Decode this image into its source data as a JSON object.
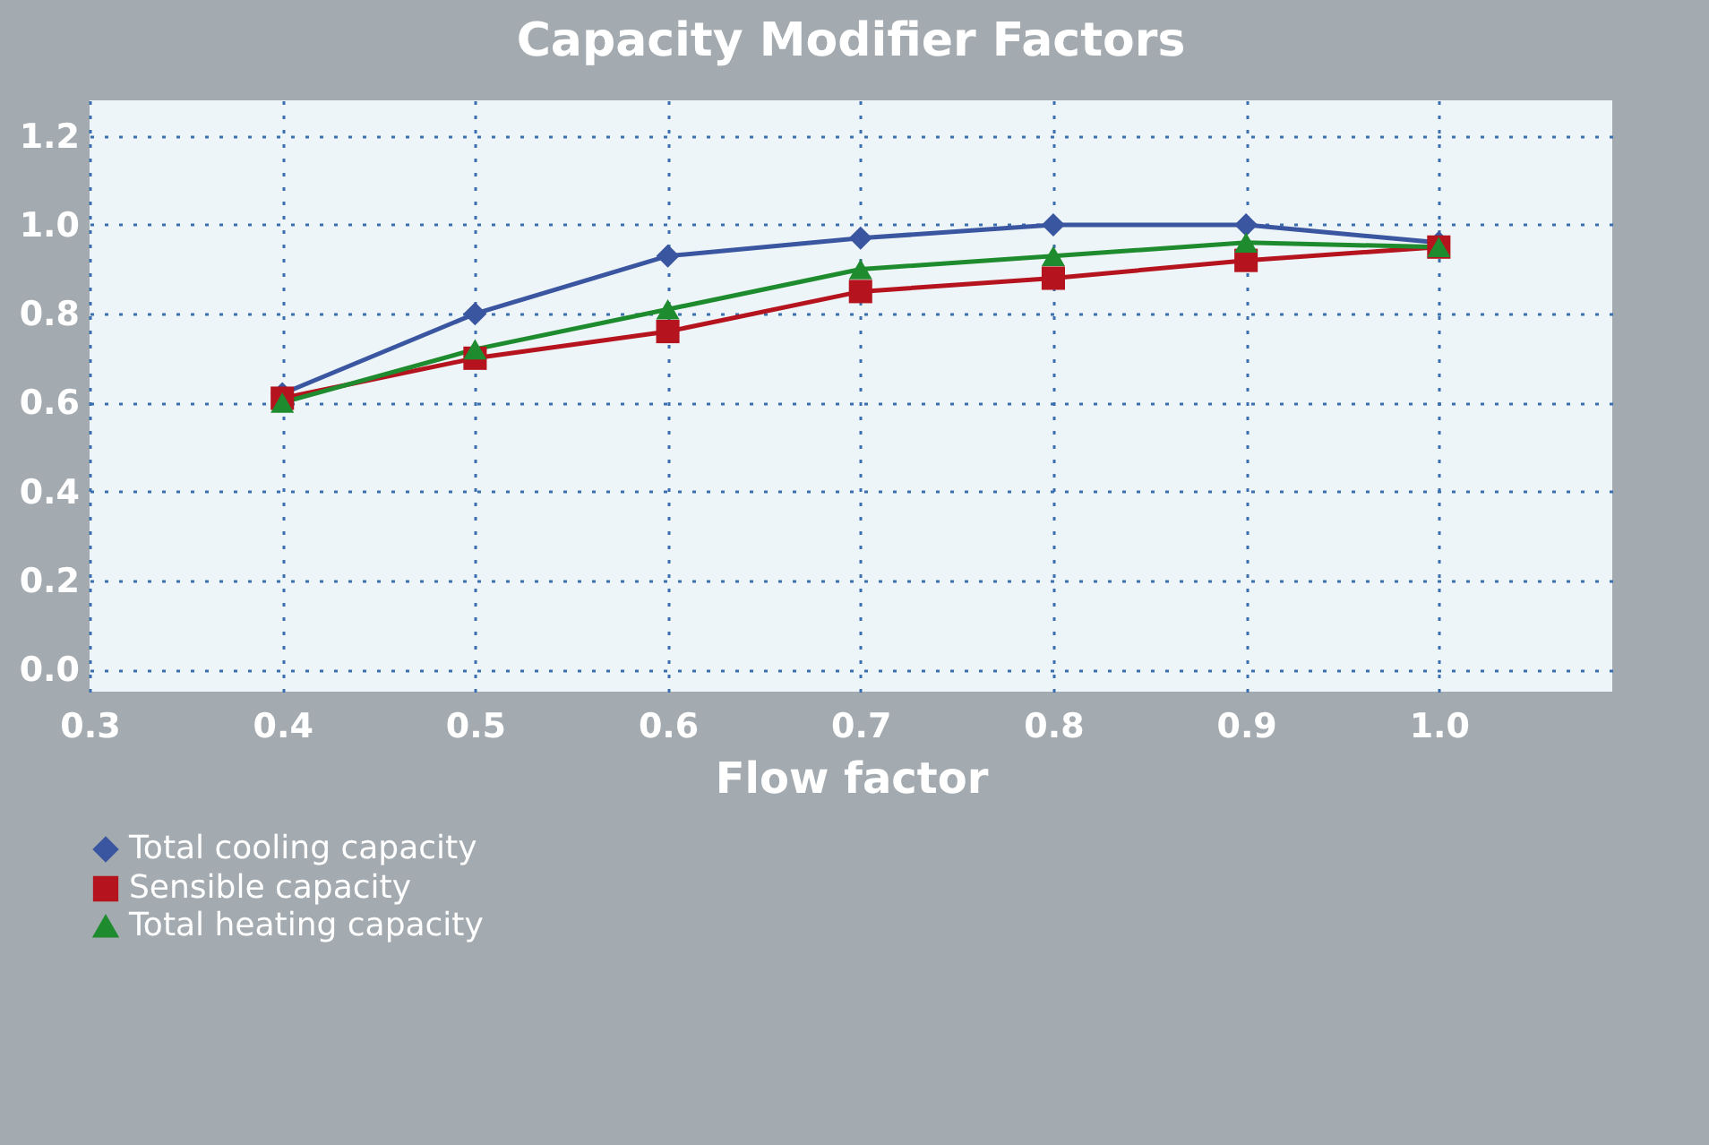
{
  "chart_data": {
    "type": "line",
    "title": "Capacity Modifier Factors",
    "xlabel": "Flow factor",
    "x": [
      0.4,
      0.5,
      0.6,
      0.7,
      0.8,
      0.9,
      1.0
    ],
    "series": [
      {
        "name": "Total cooling capacity",
        "color": "#3a56a0",
        "marker": "diamond",
        "values": [
          0.62,
          0.8,
          0.93,
          0.97,
          1.0,
          1.0,
          0.96
        ]
      },
      {
        "name": "Sensible capacity",
        "color": "#b5141e",
        "marker": "square",
        "values": [
          0.61,
          0.7,
          0.76,
          0.85,
          0.88,
          0.92,
          0.95
        ]
      },
      {
        "name": "Total heating capacity",
        "color": "#1e8c2e",
        "marker": "triangle",
        "values": [
          0.6,
          0.72,
          0.81,
          0.9,
          0.93,
          0.96,
          0.95
        ]
      }
    ],
    "xlim": [
      0.3,
      1.09
    ],
    "xticks": [
      {
        "value": 0.3,
        "label": "0.3"
      },
      {
        "value": 0.4,
        "label": "0.4"
      },
      {
        "value": 0.5,
        "label": "0.5"
      },
      {
        "value": 0.6,
        "label": "0.6"
      },
      {
        "value": 0.7,
        "label": "0.7"
      },
      {
        "value": 0.8,
        "label": "0.8"
      },
      {
        "value": 0.9,
        "label": "0.9"
      },
      {
        "value": 1.0,
        "label": "1.0"
      }
    ],
    "ylim": [
      -0.05,
      1.28
    ],
    "yticks": [
      {
        "value": 0,
        "label": "0.0"
      },
      {
        "value": 0.2,
        "label": "0.2"
      },
      {
        "value": 0.4,
        "label": "0.4"
      },
      {
        "value": 0.6,
        "label": "0.6"
      },
      {
        "value": 0.8,
        "label": "0.8"
      },
      {
        "value": 1.0,
        "label": "1.0"
      },
      {
        "value": 1.2,
        "label": "1.2"
      }
    ],
    "grid": true,
    "legend": "bottom left",
    "line_style": "solid"
  }
}
